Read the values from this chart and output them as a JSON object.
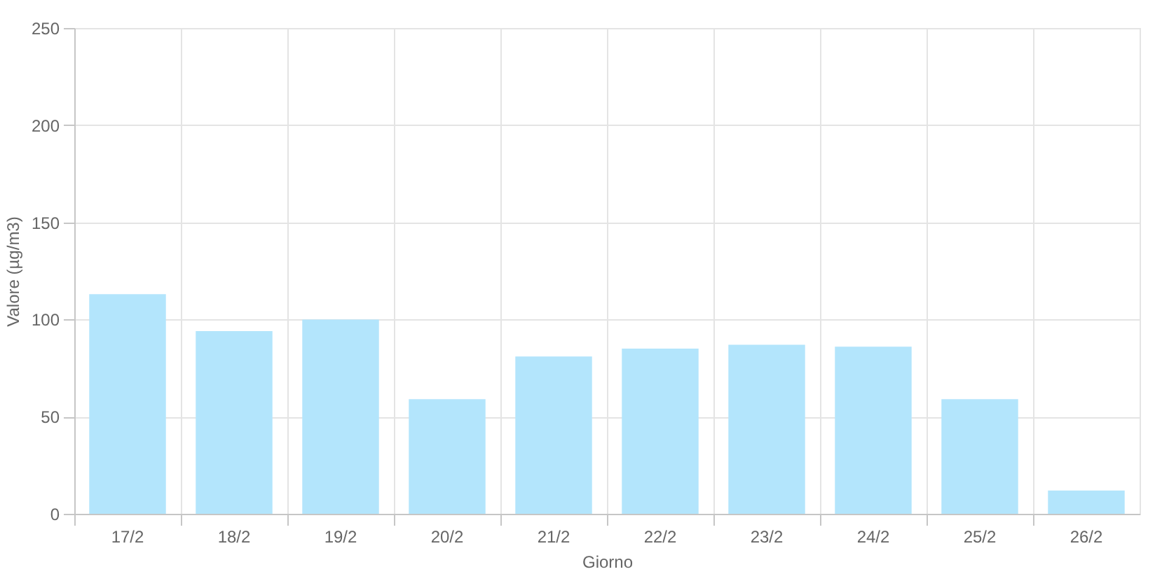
{
  "chart_data": {
    "type": "bar",
    "xlabel": "Giorno",
    "ylabel": "Valore (µg/m3)",
    "categories": [
      "17/2",
      "18/2",
      "19/2",
      "20/2",
      "21/2",
      "22/2",
      "23/2",
      "24/2",
      "25/2",
      "26/2"
    ],
    "values": [
      113,
      94,
      100,
      59,
      81,
      85,
      87,
      86,
      59,
      12
    ],
    "color": "#b3e5fc",
    "ylim": [
      0,
      250
    ],
    "yticks": [
      0,
      50,
      100,
      150,
      200,
      250
    ],
    "grid": true
  }
}
